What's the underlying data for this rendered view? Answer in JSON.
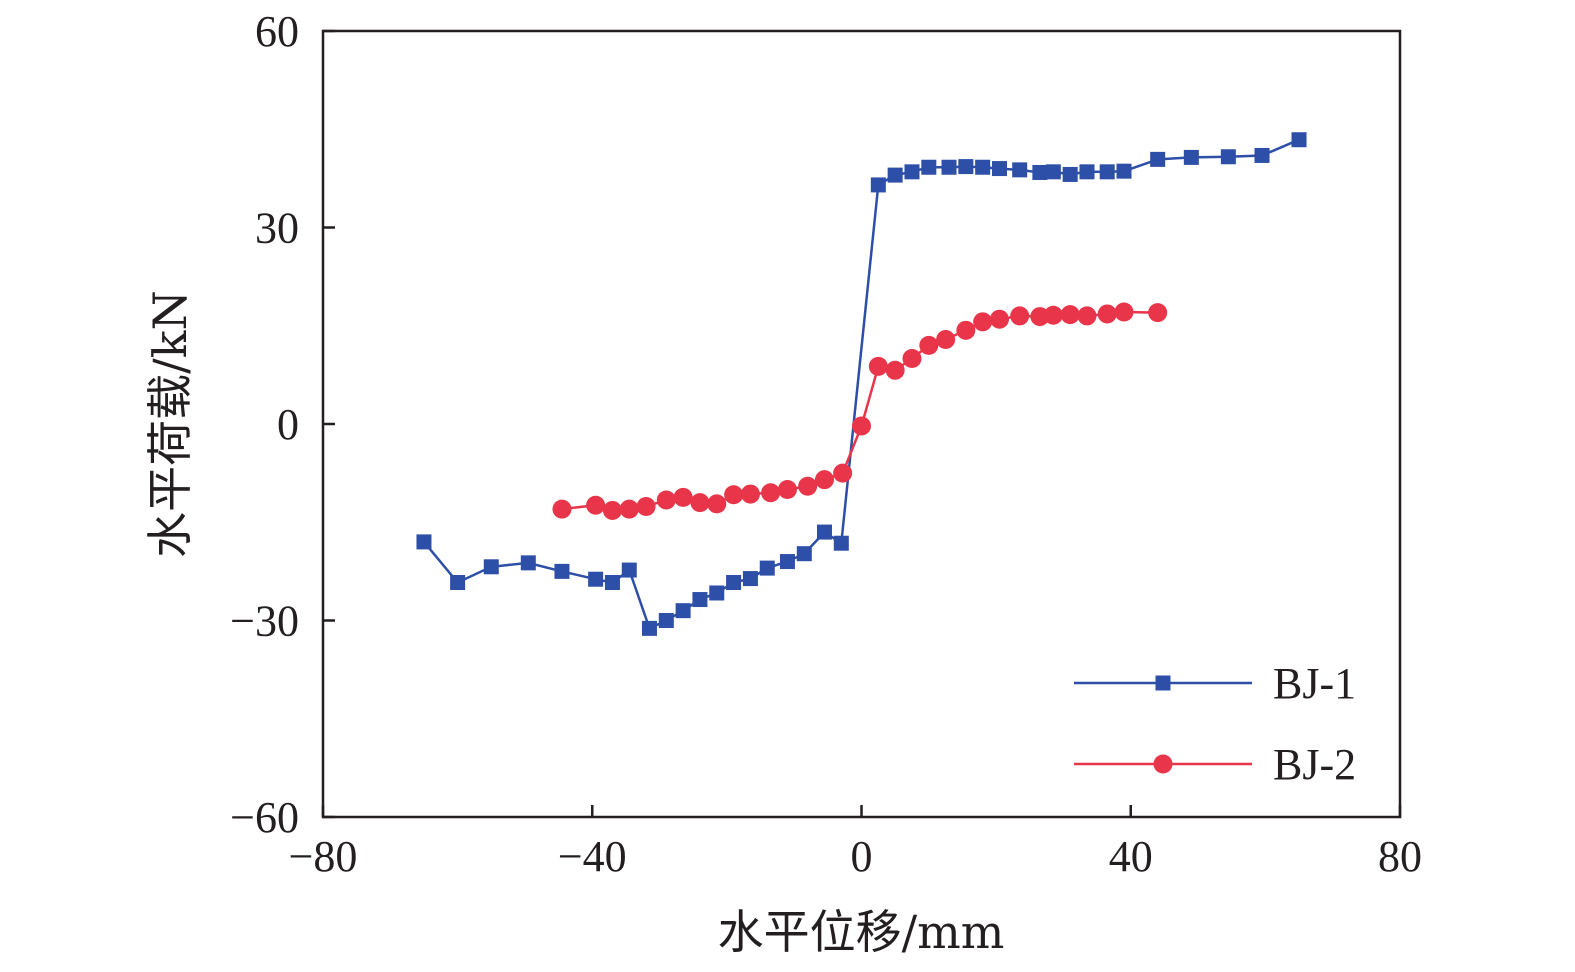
{
  "chart_data": {
    "type": "line",
    "xlabel": "水平位移/mm",
    "ylabel": "水平荷载/kN",
    "xlim": [
      -80,
      80
    ],
    "ylim": [
      -60,
      60
    ],
    "xticks": [
      -80,
      -40,
      0,
      40,
      80
    ],
    "yticks": [
      -60,
      -30,
      0,
      30,
      60
    ],
    "xtick_labels": [
      "−80",
      "−40",
      "0",
      "40",
      "80"
    ],
    "ytick_labels": [
      "−60",
      "−30",
      "0",
      "30",
      "60"
    ],
    "grid": false,
    "legend_position": "bottom-right",
    "series": [
      {
        "name": "BJ-1",
        "color": "#2e4fa8",
        "marker": "square",
        "x": [
          -65,
          -60,
          -55,
          -49.5,
          -44.5,
          -39.5,
          -37,
          -34.5,
          -31.5,
          -29,
          -26.5,
          -24,
          -21.5,
          -19,
          -16.5,
          -14,
          -11,
          -8.5,
          -5.5,
          -3,
          2.5,
          5,
          7.5,
          10,
          13,
          15.5,
          18,
          20.5,
          23.5,
          26.5,
          28.5,
          31,
          33.5,
          36.5,
          39,
          44,
          49,
          54.5,
          59.5,
          65
        ],
        "y": [
          -18,
          -24.2,
          -21.8,
          -21.2,
          -22.5,
          -23.7,
          -24.2,
          -22.3,
          -31.2,
          -30,
          -28.5,
          -26.8,
          -25.8,
          -24.2,
          -23.6,
          -22,
          -21,
          -19.8,
          -16.5,
          -18.2,
          36.5,
          38,
          38.5,
          39.2,
          39.2,
          39.3,
          39.2,
          39,
          38.8,
          38.4,
          38.5,
          38.1,
          38.5,
          38.5,
          38.6,
          40.4,
          40.7,
          40.8,
          41,
          43.4
        ]
      },
      {
        "name": "BJ-2",
        "color": "#e8354a",
        "marker": "circle",
        "x": [
          -44.5,
          -39.5,
          -37,
          -34.5,
          -32,
          -29,
          -26.5,
          -24,
          -21.5,
          -19,
          -16.5,
          -13.5,
          -11,
          -8,
          -5.5,
          -2.8,
          0,
          2.5,
          5,
          7.5,
          10,
          12.5,
          15.5,
          18,
          20.5,
          23.5,
          26.5,
          28.5,
          31,
          33.5,
          36.5,
          39,
          44
        ],
        "y": [
          -13,
          -12.4,
          -13.2,
          -13,
          -12.6,
          -11.6,
          -11.2,
          -12,
          -12.2,
          -10.8,
          -10.7,
          -10.5,
          -10,
          -9.5,
          -8.5,
          -7.5,
          -0.3,
          8.8,
          8.2,
          10,
          12,
          12.9,
          14.3,
          15.6,
          16,
          16.5,
          16.4,
          16.6,
          16.7,
          16.5,
          16.8,
          17.1,
          17
        ]
      }
    ]
  }
}
